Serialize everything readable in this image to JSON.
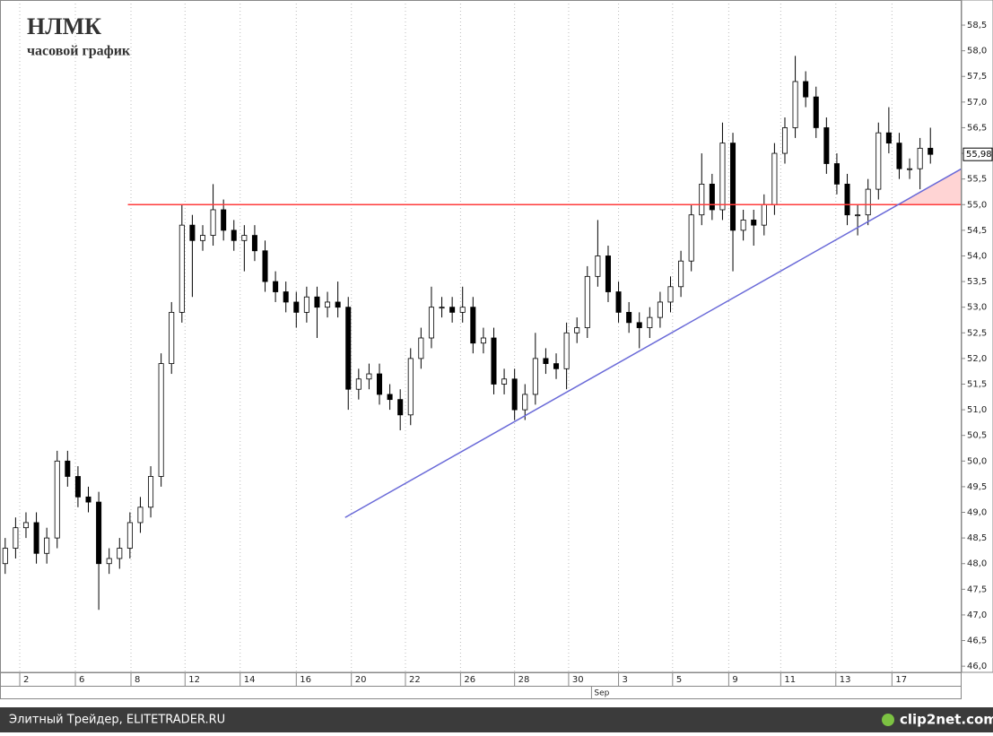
{
  "chart_data": {
    "type": "candlestick",
    "title": "НЛМК",
    "subtitle": "часовой график",
    "xlim": [
      -0.5,
      92
    ],
    "ylim": [
      45.88,
      58.99
    ],
    "xticks": [
      {
        "value": 1.4,
        "label": "2"
      },
      {
        "value": 6.75,
        "label": "6"
      },
      {
        "value": 12.1,
        "label": "8"
      },
      {
        "value": 17.3,
        "label": "12"
      },
      {
        "value": 22.6,
        "label": "14"
      },
      {
        "value": 28,
        "label": "16"
      },
      {
        "value": 33.3,
        "label": "20"
      },
      {
        "value": 38.5,
        "label": "22"
      },
      {
        "value": 43.8,
        "label": "26"
      },
      {
        "value": 49,
        "label": "28"
      },
      {
        "value": 54.2,
        "label": "30"
      },
      {
        "value": 59,
        "label": "3"
      },
      {
        "value": 64.2,
        "label": "5"
      },
      {
        "value": 69.6,
        "label": "9"
      },
      {
        "value": 74.6,
        "label": "11"
      },
      {
        "value": 79.9,
        "label": "13"
      },
      {
        "value": 85.3,
        "label": "17"
      }
    ],
    "x_group_labels": [
      {
        "value": 56.4,
        "label": "Sep"
      }
    ],
    "yticks": [
      {
        "value": 46.0,
        "label": "46,0"
      },
      {
        "value": 46.5,
        "label": "46,5"
      },
      {
        "value": 47.0,
        "label": "47,0"
      },
      {
        "value": 47.5,
        "label": "47,5"
      },
      {
        "value": 48.0,
        "label": "48,0"
      },
      {
        "value": 48.5,
        "label": "48,5"
      },
      {
        "value": 49.0,
        "label": "49,0"
      },
      {
        "value": 49.5,
        "label": "49,5"
      },
      {
        "value": 50.0,
        "label": "50,0"
      },
      {
        "value": 50.5,
        "label": "50,5"
      },
      {
        "value": 51.0,
        "label": "51,0"
      },
      {
        "value": 51.5,
        "label": "51,5"
      },
      {
        "value": 52.0,
        "label": "52,0"
      },
      {
        "value": 52.5,
        "label": "52,5"
      },
      {
        "value": 53.0,
        "label": "53,0"
      },
      {
        "value": 53.5,
        "label": "53,5"
      },
      {
        "value": 54.0,
        "label": "54,0"
      },
      {
        "value": 54.5,
        "label": "54,5"
      },
      {
        "value": 55.0,
        "label": "55,0"
      },
      {
        "value": 55.5,
        "label": "55,5"
      },
      {
        "value": 56.0,
        "label": "56,0"
      },
      {
        "value": 56.5,
        "label": "56,5"
      },
      {
        "value": 57.0,
        "label": "57,0"
      },
      {
        "value": 57.5,
        "label": "57,5"
      },
      {
        "value": 58.0,
        "label": "58,0"
      },
      {
        "value": 58.5,
        "label": "58,5"
      }
    ],
    "grid": true,
    "up_color": "#ffffff",
    "down_color": "#000000",
    "open": [
      48.0,
      48.3,
      48.7,
      48.8,
      48.2,
      48.5,
      50.0,
      49.7,
      49.3,
      49.2,
      48.0,
      48.1,
      48.3,
      48.8,
      49.1,
      49.7,
      51.9,
      52.9,
      54.6,
      54.3,
      54.4,
      54.9,
      54.5,
      54.3,
      54.4,
      54.1,
      53.5,
      53.3,
      53.1,
      52.9,
      53.2,
      53.0,
      53.1,
      53.0,
      51.4,
      51.6,
      51.7,
      51.3,
      51.2,
      50.9,
      52.0,
      52.4,
      53.0,
      53.0,
      52.9,
      53.0,
      52.3,
      52.4,
      51.5,
      51.6,
      51.0,
      51.3,
      52.0,
      51.9,
      51.8,
      52.5,
      52.6,
      53.6,
      54.0,
      53.3,
      52.9,
      52.7,
      52.6,
      52.8,
      53.1,
      53.4,
      53.9,
      54.8,
      55.4,
      54.9,
      56.2,
      54.5,
      54.7,
      54.6,
      55.0,
      56.0,
      56.5,
      57.4,
      57.1,
      56.5,
      55.8,
      55.4,
      54.8,
      54.8,
      55.3,
      56.4,
      56.2,
      55.7,
      55.7,
      56.1
    ],
    "high": [
      48.5,
      48.9,
      49.0,
      49.0,
      48.7,
      50.2,
      50.2,
      49.9,
      49.5,
      49.4,
      48.3,
      48.5,
      49.0,
      49.3,
      49.9,
      52.1,
      53.1,
      55.0,
      54.8,
      54.6,
      55.4,
      55.1,
      54.7,
      54.6,
      54.6,
      54.3,
      53.7,
      53.5,
      53.3,
      53.4,
      53.4,
      53.3,
      53.5,
      53.2,
      51.8,
      51.9,
      51.9,
      51.5,
      51.4,
      52.2,
      52.6,
      53.4,
      53.2,
      53.2,
      53.4,
      53.2,
      52.6,
      52.6,
      51.8,
      51.8,
      51.5,
      52.5,
      52.2,
      52.1,
      52.7,
      52.8,
      53.8,
      54.7,
      54.2,
      53.5,
      53.1,
      52.9,
      53.0,
      53.3,
      53.6,
      54.1,
      55.0,
      56.0,
      55.6,
      56.6,
      56.4,
      54.9,
      54.9,
      55.2,
      56.2,
      56.7,
      57.9,
      57.6,
      57.3,
      56.7,
      56.0,
      55.6,
      55.0,
      55.5,
      56.6,
      56.9,
      56.4,
      55.9,
      56.3,
      56.5
    ],
    "low": [
      47.8,
      48.1,
      48.5,
      48.0,
      48.0,
      48.3,
      49.5,
      49.1,
      49.0,
      47.1,
      47.8,
      47.9,
      48.1,
      48.6,
      48.9,
      49.5,
      51.7,
      52.7,
      53.2,
      54.1,
      54.2,
      54.3,
      54.1,
      53.7,
      53.9,
      53.3,
      53.1,
      52.9,
      52.6,
      52.7,
      52.4,
      52.8,
      52.8,
      51.0,
      51.2,
      51.4,
      51.1,
      51.0,
      50.6,
      50.7,
      51.8,
      52.2,
      52.8,
      52.7,
      52.7,
      52.1,
      52.1,
      51.3,
      51.3,
      50.8,
      50.8,
      51.1,
      51.7,
      51.6,
      51.4,
      52.3,
      52.4,
      53.4,
      53.1,
      52.7,
      52.5,
      52.2,
      52.4,
      52.6,
      52.9,
      53.2,
      53.7,
      54.6,
      54.7,
      54.7,
      53.7,
      54.3,
      54.2,
      54.4,
      54.8,
      55.8,
      56.3,
      56.9,
      56.3,
      55.6,
      55.2,
      54.6,
      54.4,
      54.6,
      55.1,
      56.0,
      55.5,
      55.5,
      55.3,
      55.8
    ],
    "close": [
      48.3,
      48.7,
      48.8,
      48.2,
      48.5,
      50.0,
      49.7,
      49.3,
      49.2,
      48.0,
      48.1,
      48.3,
      48.8,
      49.1,
      49.7,
      51.9,
      52.9,
      54.6,
      54.3,
      54.4,
      54.9,
      54.5,
      54.3,
      54.4,
      54.1,
      53.5,
      53.3,
      53.1,
      52.9,
      53.2,
      53.0,
      53.1,
      53.0,
      51.4,
      51.6,
      51.7,
      51.3,
      51.2,
      50.9,
      52.0,
      52.4,
      53.0,
      53.0,
      52.9,
      53.0,
      52.3,
      52.4,
      51.5,
      51.6,
      51.0,
      51.3,
      52.0,
      51.9,
      51.8,
      52.5,
      52.6,
      53.6,
      54.0,
      53.3,
      52.9,
      52.7,
      52.6,
      52.8,
      53.1,
      53.4,
      53.9,
      54.8,
      55.4,
      54.9,
      56.2,
      54.5,
      54.7,
      54.6,
      55.0,
      56.0,
      56.5,
      57.4,
      57.1,
      56.5,
      55.8,
      55.4,
      54.8,
      54.8,
      55.3,
      56.4,
      56.2,
      55.7,
      55.7,
      56.1,
      55.98
    ],
    "lines": [
      {
        "color": "#ff3b3b",
        "x": [
          11.8,
          92
        ],
        "values": [
          55.0,
          55.0
        ]
      },
      {
        "color": "#6a6ad8",
        "x": [
          32.7,
          92
        ],
        "values": [
          48.9,
          55.7
        ]
      }
    ],
    "fill_color": "#ffd4d4",
    "last_price": {
      "value": 55.98,
      "label": "55,98"
    },
    "footer": "Элитный Трейдер, ELITETRADER.RU",
    "logo": "clip2net.com"
  }
}
